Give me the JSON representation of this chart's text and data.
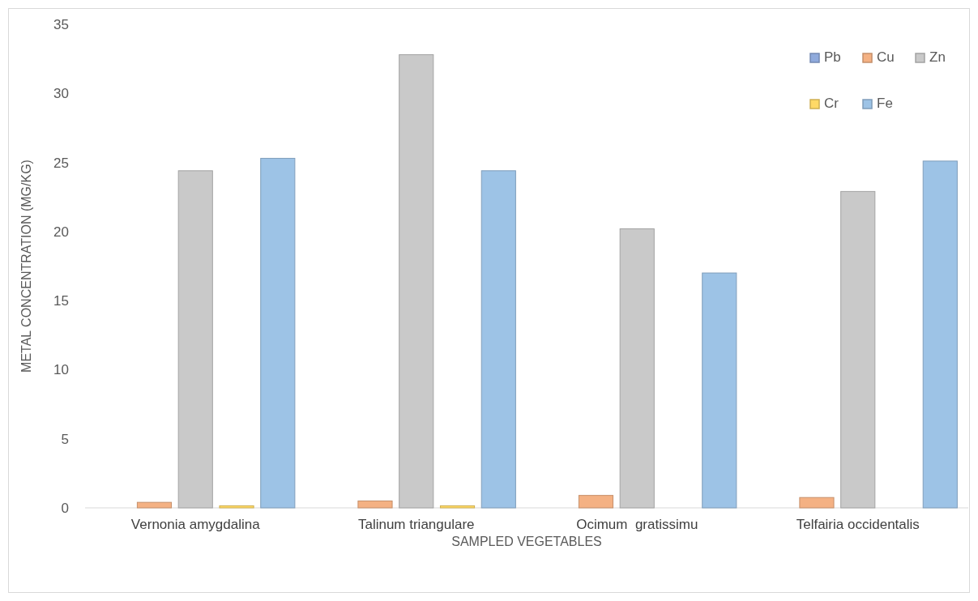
{
  "chart_data": {
    "type": "bar",
    "xlabel": "SAMPLED VEGETABLES",
    "ylabel": "METAL CONCENTRATION (MG/KG)",
    "categories": [
      "Vernonia amygdalina",
      "Talinum triangulare",
      "Ocimum  gratissimu",
      "Telfairia occidentalis"
    ],
    "series": [
      {
        "name": "Pb",
        "color": "#8faadc",
        "values": [
          0,
          0,
          0,
          0
        ]
      },
      {
        "name": "Cu",
        "color": "#f4b183",
        "values": [
          0.4,
          0.5,
          0.9,
          0.75
        ]
      },
      {
        "name": "Zn",
        "color": "#c9c9c9",
        "values": [
          24.4,
          32.8,
          20.2,
          22.9
        ]
      },
      {
        "name": "Cr",
        "color": "#ffd966",
        "values": [
          0.15,
          0.15,
          0,
          0
        ]
      },
      {
        "name": "Fe",
        "color": "#9dc3e6",
        "values": [
          25.3,
          24.4,
          17.0,
          25.1
        ]
      }
    ],
    "ylim": [
      0,
      35
    ],
    "yticks": [
      0,
      5,
      10,
      15,
      20,
      25,
      30,
      35
    ],
    "grid": false,
    "legend": "top right"
  }
}
